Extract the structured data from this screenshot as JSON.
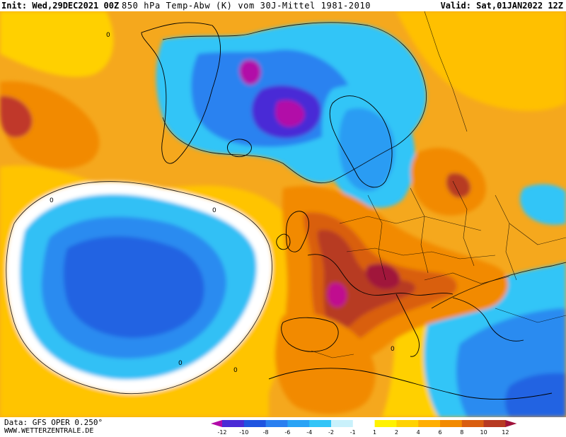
{
  "header": {
    "init_label": "Init:",
    "init_value": "Wed,29DEC2021 00Z",
    "parameter": "850 hPa Temp-Abw (K) vom 30J-Mittel 1981-2010",
    "valid_label": "Valid:",
    "valid_value": "Sat,01JAN2022 12Z"
  },
  "footer": {
    "data_source": "Data: GFS OPER 0.250°",
    "website": "WWW.WETTERZENTRALE.DE"
  },
  "colorbar": {
    "labels": [
      "-12",
      "-10",
      "-8",
      "-6",
      "-4",
      "-2",
      "-1",
      "1",
      "2",
      "4",
      "6",
      "8",
      "10",
      "12"
    ],
    "colors": {
      "very_cold": "#b20aa8",
      "cold_violet": "#4a2bd6",
      "cold_blue_dark": "#1f54e0",
      "cold_blue": "#2a7ff0",
      "cold_blue_light": "#29a3f5",
      "cold_cyan": "#33c5f7",
      "neutral_light": "#c9f1fb",
      "neutral": "#ffffff",
      "warm_yellow": "#fff200",
      "warm_yellow2": "#ffd200",
      "warm_orange_light": "#ffae00",
      "warm_orange": "#f28a00",
      "warm_dark_orange": "#d95e10",
      "warm_red": "#b73a22",
      "warm_dark_red": "#a0123a"
    }
  },
  "contour_labels": [
    "0",
    "0",
    "0",
    "0",
    "0",
    "0"
  ]
}
